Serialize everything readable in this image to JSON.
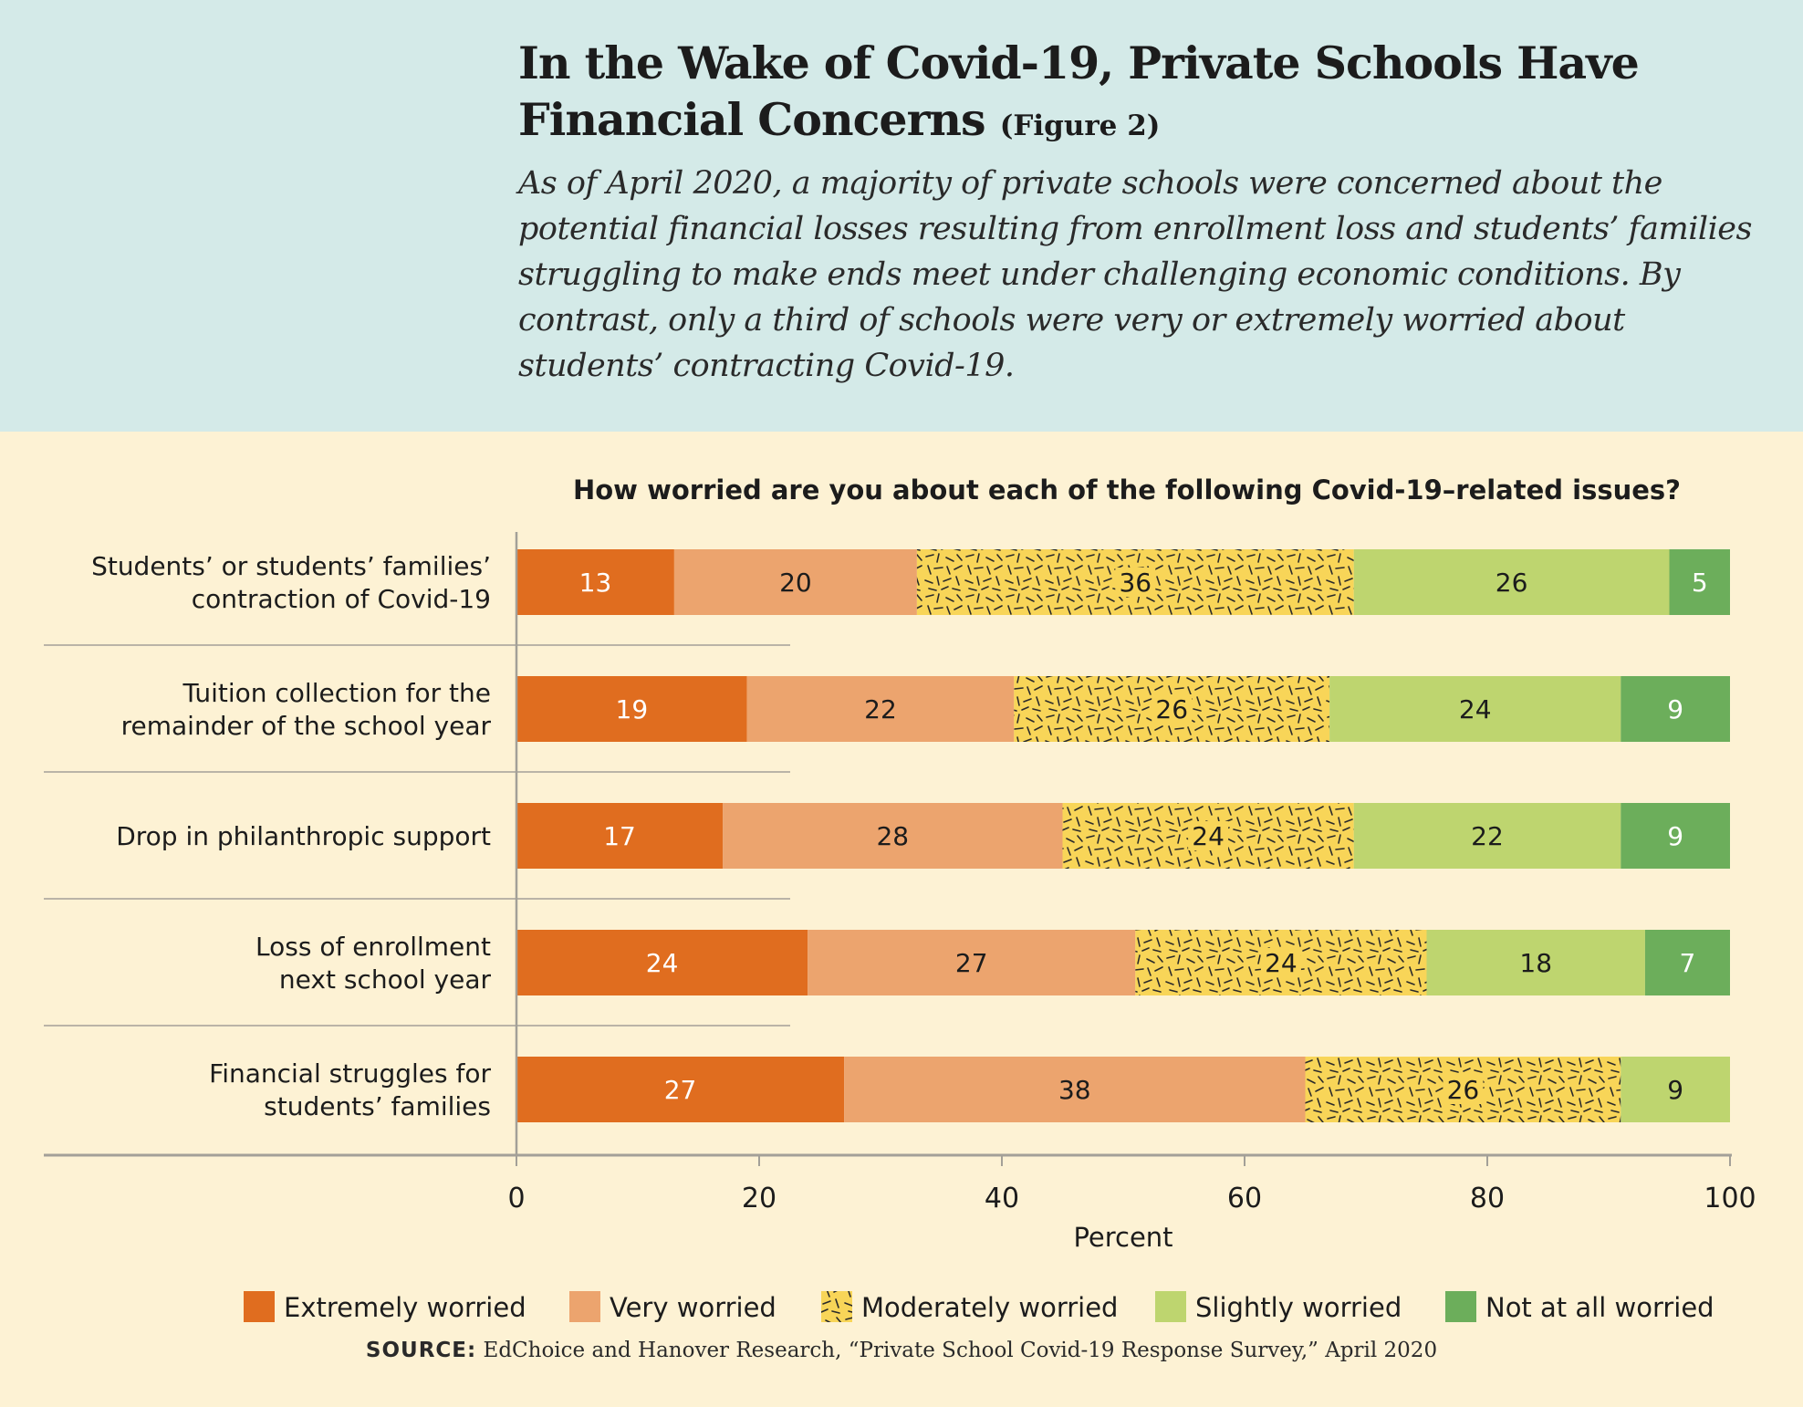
{
  "title": "In the Wake of Covid-19, Private Schools Have Financial Concerns",
  "figure_label": "(Figure 2)",
  "subtitle": "As of April 2020, a majority of private schools were concerned about the potential financial losses resulting from enrollment loss and students’ families struggling to make ends meet under challenging economic conditions. By contrast, only a third of schools were very or extremely worried about students’ contracting Covid-19.",
  "source": {
    "label": "SOURCE:",
    "text": "EdChoice and Hanover Research, “Private School Covid-19 Response Survey,” April 2020"
  },
  "colors": {
    "extremely": "#e06d1f",
    "very": "#eca46e",
    "moderately": "#f8d558",
    "slightly": "#bed56f",
    "not_at_all": "#6cae5b",
    "header_bg": "#d4eae8",
    "chart_bg": "#fdf2d4",
    "axis": "#a3a098"
  },
  "chart_data": {
    "type": "bar",
    "orientation": "horizontal",
    "stacked": true,
    "title": "How worried are you about each of the following Covid-19–related issues?",
    "categories": [
      [
        "Students’ or students’ families’",
        "contraction of Covid-19"
      ],
      [
        "Tuition collection for the",
        "remainder of the school year"
      ],
      [
        "Drop in philanthropic support"
      ],
      [
        "Loss of enrollment",
        "next school year"
      ],
      [
        "Financial struggles for",
        "students’ families"
      ]
    ],
    "series": [
      {
        "name": "Extremely worried",
        "values": [
          13,
          19,
          17,
          24,
          27
        ]
      },
      {
        "name": "Very worried",
        "values": [
          20,
          22,
          28,
          27,
          38
        ]
      },
      {
        "name": "Moderately worried",
        "values": [
          36,
          26,
          24,
          24,
          26
        ]
      },
      {
        "name": "Slightly worried",
        "values": [
          26,
          24,
          22,
          18,
          9
        ]
      },
      {
        "name": "Not at all worried",
        "values": [
          5,
          9,
          9,
          7,
          null
        ]
      }
    ],
    "xlabel": "Percent",
    "ylabel": "",
    "xlim": [
      0,
      100
    ],
    "xticks": [
      0,
      20,
      40,
      60,
      80,
      100
    ],
    "grid": false,
    "legend": "bottom",
    "data_labels": true
  }
}
